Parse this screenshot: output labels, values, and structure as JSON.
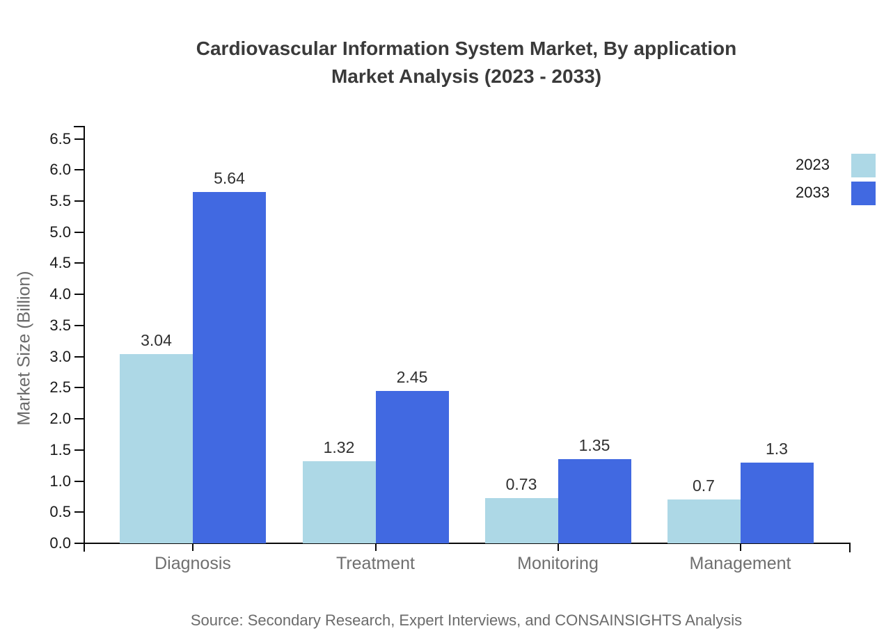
{
  "title": {
    "line1": "Cardiovascular Information System Market, By application",
    "line2": "Market Analysis (2023 - 2033)"
  },
  "source_note": "Source: Secondary Research, Expert Interviews, and CONSAINSIGHTS Analysis",
  "chart_data": {
    "type": "bar",
    "title": "Cardiovascular Information System Market, By application Market Analysis (2023 - 2033)",
    "categories": [
      "Diagnosis",
      "Treatment",
      "Monitoring",
      "Management"
    ],
    "series": [
      {
        "name": "2023",
        "color": "#ADD8E6",
        "values": [
          3.04,
          1.32,
          0.73,
          0.7
        ],
        "labels": [
          "3.04",
          "1.32",
          "0.73",
          "0.7"
        ]
      },
      {
        "name": "2033",
        "color": "#4169E1",
        "values": [
          5.64,
          2.45,
          1.35,
          1.3
        ],
        "labels": [
          "5.64",
          "2.45",
          "1.35",
          "1.3"
        ]
      }
    ],
    "xlabel": "",
    "ylabel": "Market Size (Billion)",
    "ylim": [
      0,
      6.5
    ],
    "ytick_step": 0.5,
    "ytick_format_decimals": 1,
    "grid": false,
    "legend_position": "right-top",
    "bar_value_labels": true,
    "axis_color": "#0a0a0a",
    "background_color": "#ffffff"
  }
}
